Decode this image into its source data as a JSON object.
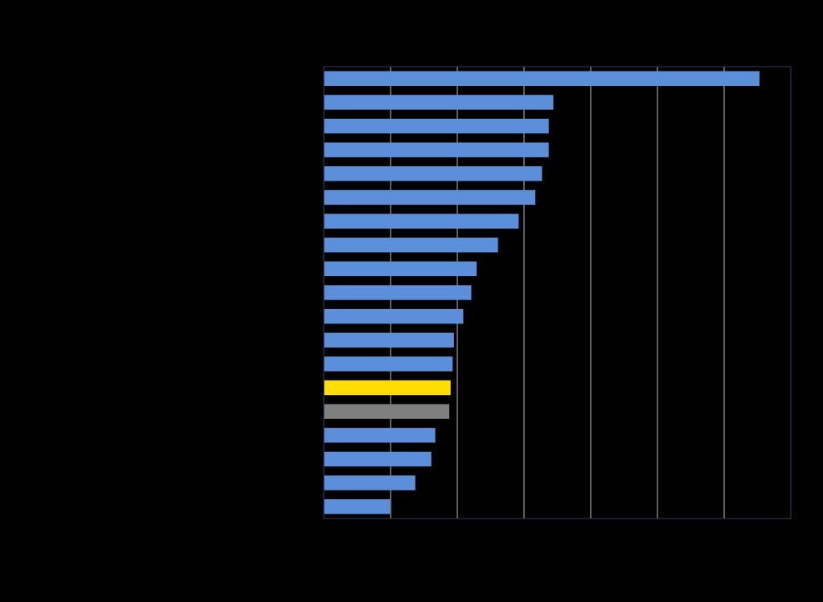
{
  "chart_data": {
    "type": "bar",
    "orientation": "horizontal",
    "title": "",
    "xlabel": "",
    "ylabel": "",
    "grid": true,
    "legend": "none",
    "xlim": [
      0,
      7
    ],
    "background_color": "#000000",
    "gridline_color": "#bfbfbf",
    "frame_color": "#2f3b5c",
    "bars": [
      {
        "value": 6.53,
        "color": "#5b8fd9"
      },
      {
        "value": 3.44,
        "color": "#5b8fd9"
      },
      {
        "value": 3.37,
        "color": "#5b8fd9"
      },
      {
        "value": 3.37,
        "color": "#5b8fd9"
      },
      {
        "value": 3.27,
        "color": "#5b8fd9"
      },
      {
        "value": 3.17,
        "color": "#5b8fd9"
      },
      {
        "value": 2.92,
        "color": "#5b8fd9"
      },
      {
        "value": 2.61,
        "color": "#5b8fd9"
      },
      {
        "value": 2.29,
        "color": "#5b8fd9"
      },
      {
        "value": 2.21,
        "color": "#5b8fd9"
      },
      {
        "value": 2.09,
        "color": "#5b8fd9"
      },
      {
        "value": 1.95,
        "color": "#5b8fd9"
      },
      {
        "value": 1.93,
        "color": "#5b8fd9"
      },
      {
        "value": 1.9,
        "color": "#ffdd00"
      },
      {
        "value": 1.88,
        "color": "#7f7f7f"
      },
      {
        "value": 1.67,
        "color": "#5b8fd9"
      },
      {
        "value": 1.61,
        "color": "#5b8fd9"
      },
      {
        "value": 1.37,
        "color": "#5b8fd9"
      },
      {
        "value": 0.99,
        "color": "#5b8fd9"
      }
    ]
  }
}
